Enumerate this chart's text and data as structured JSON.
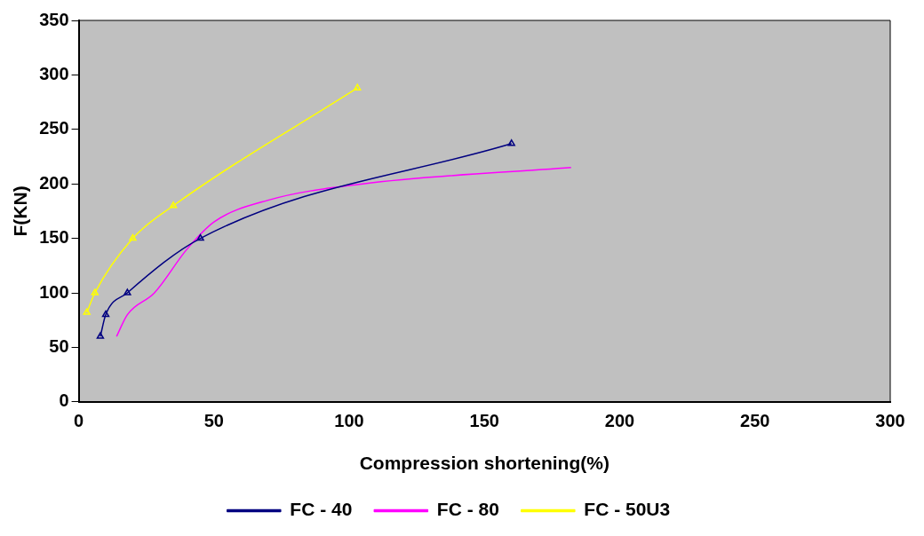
{
  "chart_data": {
    "type": "line",
    "xlabel": "Compression shortening(%)",
    "ylabel": "F(KN)",
    "xlim": [
      0,
      300
    ],
    "xticks": [
      0,
      50,
      100,
      150,
      200,
      250,
      300
    ],
    "ylim": [
      0,
      350
    ],
    "yticks": [
      0,
      50,
      100,
      150,
      200,
      250,
      300,
      350
    ],
    "grid": false,
    "legend": "bottom",
    "series": [
      {
        "name": "FC - 40",
        "color": "#000080",
        "marker": "triangle",
        "x": [
          8,
          10,
          18,
          45,
          160
        ],
        "values": [
          60,
          80,
          100,
          150,
          237
        ]
      },
      {
        "name": "FC - 80",
        "color": "#ff00ff",
        "marker": "none",
        "x": [
          14,
          18,
          28,
          40,
          50,
          70,
          105,
          182
        ],
        "values": [
          60,
          80,
          100,
          140,
          165,
          185,
          200,
          215
        ]
      },
      {
        "name": "FC - 50U3",
        "color": "#ffff00",
        "marker": "triangle",
        "x": [
          3,
          6,
          20,
          35,
          103
        ],
        "values": [
          82,
          100,
          150,
          180,
          288
        ]
      }
    ]
  }
}
